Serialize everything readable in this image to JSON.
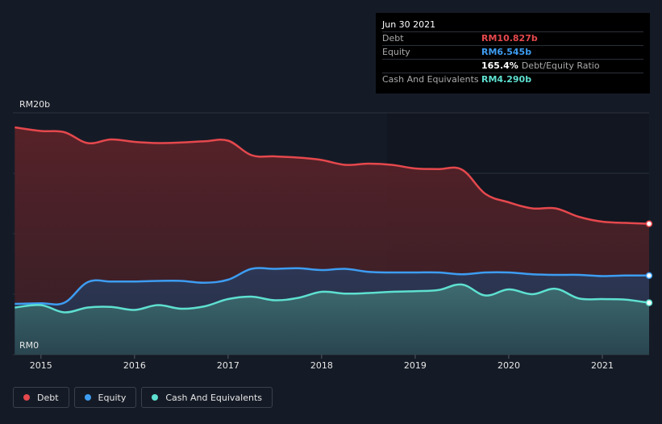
{
  "tooltip": {
    "date": "Jun 30 2021",
    "rows": [
      {
        "label": "Debt",
        "value": "RM10.827b",
        "color": "#e5484d"
      },
      {
        "label": "Equity",
        "value": "RM6.545b",
        "color": "#3d9df2"
      },
      {
        "label": "",
        "value": "165.4%",
        "color": "#ffffff",
        "desc": "Debt/Equity Ratio"
      },
      {
        "label": "Cash And Equivalents",
        "value": "RM4.290b",
        "color": "#5ee0d0"
      }
    ]
  },
  "legend": [
    {
      "label": "Debt",
      "color": "#e5484d"
    },
    {
      "label": "Equity",
      "color": "#3d9df2"
    },
    {
      "label": "Cash And Equivalents",
      "color": "#5ee0d0"
    }
  ],
  "chart_data": {
    "type": "area",
    "title": "",
    "y_top_label": "RM20b",
    "y_bottom_label": "RM0",
    "ylim": [
      0,
      20
    ],
    "xlim": [
      2014.7,
      2021.5
    ],
    "x_ticks": [
      "2015",
      "2016",
      "2017",
      "2018",
      "2019",
      "2020",
      "2021"
    ],
    "series": [
      {
        "name": "Debt",
        "color": "#e5484d",
        "x": [
          2014.72,
          2015.0,
          2015.25,
          2015.5,
          2015.75,
          2016.0,
          2016.25,
          2016.5,
          2016.75,
          2017.0,
          2017.25,
          2017.5,
          2017.75,
          2018.0,
          2018.25,
          2018.5,
          2018.75,
          2019.0,
          2019.25,
          2019.5,
          2019.75,
          2020.0,
          2020.25,
          2020.5,
          2020.75,
          2021.0,
          2021.25,
          2021.5
        ],
        "y": [
          18.8,
          18.5,
          18.4,
          17.5,
          17.8,
          17.6,
          17.5,
          17.55,
          17.65,
          17.7,
          16.5,
          16.4,
          16.3,
          16.1,
          15.7,
          15.8,
          15.7,
          15.4,
          15.35,
          15.3,
          13.3,
          12.6,
          12.1,
          12.1,
          11.4,
          11.0,
          10.9,
          10.827
        ]
      },
      {
        "name": "Equity",
        "color": "#3d9df2",
        "x": [
          2014.72,
          2015.0,
          2015.25,
          2015.5,
          2015.75,
          2016.0,
          2016.25,
          2016.5,
          2016.75,
          2017.0,
          2017.25,
          2017.5,
          2017.75,
          2018.0,
          2018.25,
          2018.5,
          2018.75,
          2019.0,
          2019.25,
          2019.5,
          2019.75,
          2020.0,
          2020.25,
          2020.5,
          2020.75,
          2021.0,
          2021.25,
          2021.5
        ],
        "y": [
          4.2,
          4.25,
          4.3,
          6.0,
          6.05,
          6.05,
          6.1,
          6.1,
          5.95,
          6.2,
          7.1,
          7.1,
          7.15,
          7.0,
          7.1,
          6.85,
          6.8,
          6.8,
          6.8,
          6.65,
          6.8,
          6.8,
          6.65,
          6.6,
          6.6,
          6.5,
          6.55,
          6.545
        ]
      },
      {
        "name": "Cash And Equivalents",
        "color": "#5ee0d0",
        "x": [
          2014.72,
          2015.0,
          2015.25,
          2015.5,
          2015.75,
          2016.0,
          2016.25,
          2016.5,
          2016.75,
          2017.0,
          2017.25,
          2017.5,
          2017.75,
          2018.0,
          2018.25,
          2018.5,
          2018.75,
          2019.0,
          2019.25,
          2019.5,
          2019.75,
          2020.0,
          2020.25,
          2020.5,
          2020.75,
          2021.0,
          2021.25,
          2021.5
        ],
        "y": [
          3.9,
          4.1,
          3.5,
          3.9,
          3.95,
          3.7,
          4.1,
          3.8,
          4.0,
          4.6,
          4.8,
          4.5,
          4.7,
          5.2,
          5.05,
          5.1,
          5.2,
          5.25,
          5.35,
          5.8,
          4.9,
          5.4,
          5.0,
          5.45,
          4.65,
          4.6,
          4.55,
          4.29
        ]
      }
    ]
  }
}
